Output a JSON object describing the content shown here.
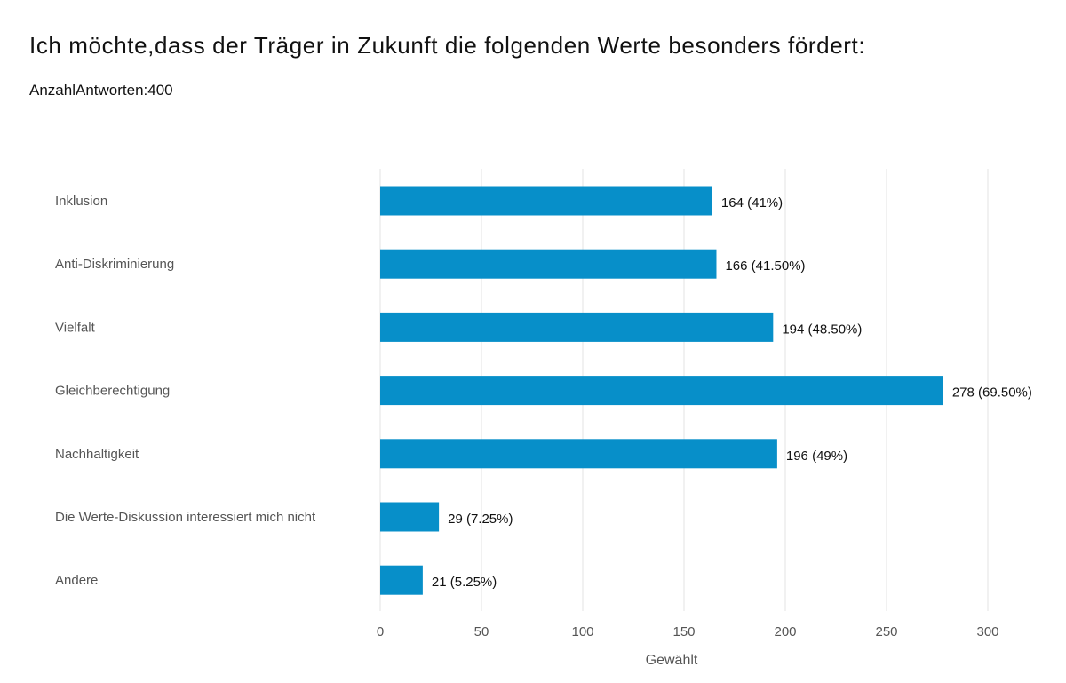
{
  "chart_data": {
    "type": "bar",
    "orientation": "horizontal",
    "title": "Ich möchte,dass der Träger in Zukunft die folgenden Werte besonders fördert:",
    "subtitle": "AnzahlAntworten:400",
    "categories": [
      "Inklusion",
      "Anti-Diskriminierung",
      "Vielfalt",
      "Gleichberechtigung",
      "Nachhaltigkeit",
      "Die Werte-Diskussion interessiert mich nicht",
      "Andere"
    ],
    "values": [
      164,
      166,
      194,
      278,
      196,
      29,
      21
    ],
    "data_labels": [
      "164 (41%)",
      "166 (41.50%)",
      "194 (48.50%)",
      "278 (69.50%)",
      "196 (49%)",
      "29 (7.25%)",
      "21 (5.25%)"
    ],
    "xlabel": "Gewählt",
    "ylabel": "",
    "xlim": [
      0,
      300
    ],
    "xticks": [
      0,
      50,
      100,
      150,
      200,
      250,
      300
    ],
    "grid": true,
    "bar_color": "#078FC9"
  }
}
